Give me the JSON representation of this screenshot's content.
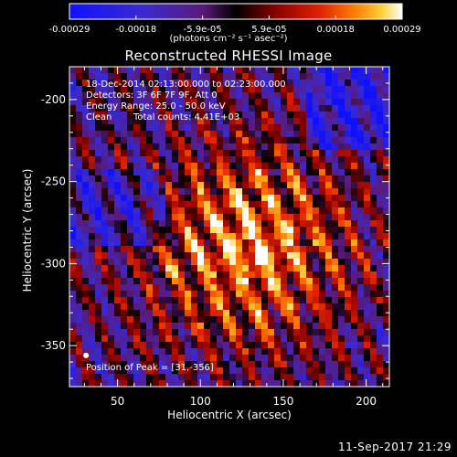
{
  "chart_data": {
    "type": "heatmap",
    "title": "Reconstructed RHESSI Image",
    "xlabel": "Heliocentric X (arcsec)",
    "ylabel": "Heliocentric Y (arcsec)",
    "xlim": [
      21,
      214
    ],
    "ylim": [
      -375,
      -180
    ],
    "x_ticks": [
      50,
      100,
      150,
      200
    ],
    "y_ticks": [
      -200,
      -250,
      -300,
      -350
    ],
    "colorbar": {
      "min": -0.00029,
      "max": 0.00029,
      "ticks": [
        "-0.00029",
        "-0.00018",
        "-5.9e-05",
        "5.9e-05",
        "0.00018",
        "0.00029"
      ],
      "units": "(photons cm⁻² s⁻¹ asec⁻²)"
    },
    "annotations": {
      "time_range": "18-Dec-2014 02:13:00.000 to 02:23:00.000",
      "detectors": "Detectors: 3F 6F 7F 9F, Att 0",
      "energy_range": "Energy Range: 25.0 - 50.0 keV",
      "algorithm": "Clean",
      "total_counts": "Total counts: 4.41E+03",
      "peak": "Position of Peak = [31,-356]"
    },
    "peak_position": [
      31,
      -356
    ]
  },
  "footer_timestamp": "11-Sep-2017 21:29"
}
